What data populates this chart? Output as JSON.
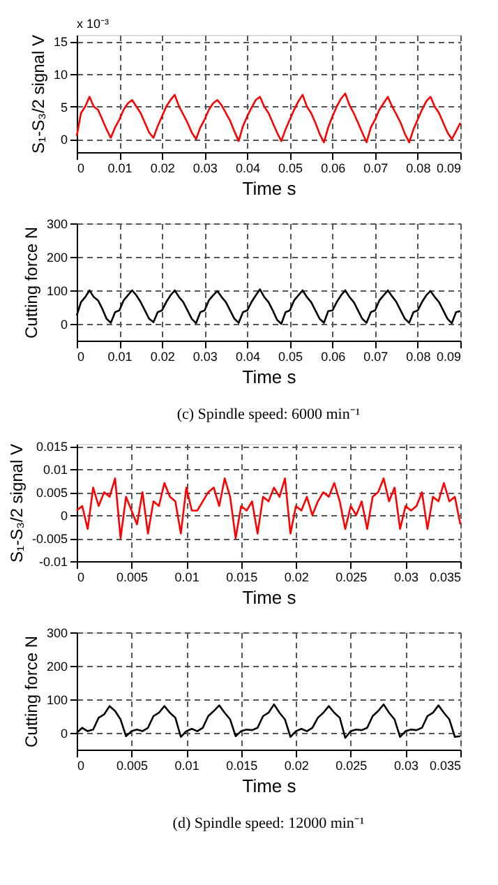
{
  "chart_data": [
    {
      "type": "line",
      "xlabel": "Time s",
      "ylabel": "S₁-S₃/2 signal V",
      "annotations": [
        "x 10⁻³"
      ],
      "xlim": [
        0,
        0.09
      ],
      "ylim": [
        -2,
        16
      ],
      "xticks": [
        0,
        0.01,
        0.02,
        0.03,
        0.04,
        0.05,
        0.06,
        0.07,
        0.08,
        0.09
      ],
      "yticks": [
        0,
        5,
        10,
        15
      ],
      "grid": true,
      "x": [
        0,
        0.001,
        0.002,
        0.003,
        0.004,
        0.005,
        0.006,
        0.007,
        0.008,
        0.009,
        0.01,
        0.011,
        0.012,
        0.013,
        0.014,
        0.015,
        0.016,
        0.017,
        0.018,
        0.019,
        0.02,
        0.021,
        0.022,
        0.023,
        0.024,
        0.025,
        0.026,
        0.027,
        0.028,
        0.029,
        0.03,
        0.031,
        0.032,
        0.033,
        0.034,
        0.035,
        0.036,
        0.037,
        0.038,
        0.039,
        0.04,
        0.041,
        0.042,
        0.043,
        0.044,
        0.045,
        0.046,
        0.047,
        0.048,
        0.049,
        0.05,
        0.051,
        0.052,
        0.053,
        0.054,
        0.055,
        0.056,
        0.057,
        0.058,
        0.059,
        0.06,
        0.061,
        0.062,
        0.063,
        0.064,
        0.065,
        0.066,
        0.067,
        0.068,
        0.069,
        0.07,
        0.071,
        0.072,
        0.073,
        0.074,
        0.075,
        0.076,
        0.077,
        0.078,
        0.079,
        0.08,
        0.081,
        0.082,
        0.083,
        0.084,
        0.085,
        0.086,
        0.087,
        0.088,
        0.089,
        0.09
      ],
      "series": [
        {
          "color": "#ff0000",
          "values": [
            0.5,
            4,
            5,
            6.5,
            5,
            4.5,
            3,
            1.5,
            0.2,
            1.8,
            3,
            4.5,
            5.5,
            6,
            5,
            4,
            2.5,
            1,
            0.2,
            2,
            3.5,
            5,
            6,
            6.8,
            5,
            3.8,
            2.5,
            1,
            0,
            1.8,
            3,
            4.5,
            5.5,
            6,
            5.2,
            4,
            2.8,
            1.2,
            -0.3,
            2,
            3.5,
            4.8,
            6,
            6.5,
            5,
            4,
            2.5,
            1,
            -0.3,
            1.5,
            3,
            4.5,
            5.8,
            6.8,
            5,
            4,
            2.5,
            0.8,
            -0.5,
            1.8,
            3.5,
            5,
            6.2,
            7,
            5.2,
            4,
            2.5,
            1,
            -0.5,
            1.8,
            3,
            4.5,
            5.5,
            6.5,
            5,
            3.8,
            2.5,
            0.8,
            -0.5,
            1.5,
            3,
            4.5,
            5.8,
            6.5,
            5,
            4,
            2.5,
            1,
            0,
            1.2,
            2.5
          ]
        }
      ]
    },
    {
      "type": "line",
      "title": "(c) Spindle speed: 6000 min⁻¹",
      "xlabel": "Time s",
      "ylabel": "Cutting force N",
      "xlim": [
        0,
        0.09
      ],
      "ylim": [
        -50,
        300
      ],
      "xticks": [
        0,
        0.01,
        0.02,
        0.03,
        0.04,
        0.05,
        0.06,
        0.07,
        0.08,
        0.09
      ],
      "yticks": [
        0,
        100,
        200,
        300
      ],
      "grid": true,
      "x": [
        0,
        0.001,
        0.002,
        0.003,
        0.004,
        0.005,
        0.006,
        0.007,
        0.008,
        0.009,
        0.01,
        0.011,
        0.012,
        0.013,
        0.014,
        0.015,
        0.016,
        0.017,
        0.018,
        0.019,
        0.02,
        0.021,
        0.022,
        0.023,
        0.024,
        0.025,
        0.026,
        0.027,
        0.028,
        0.029,
        0.03,
        0.031,
        0.032,
        0.033,
        0.034,
        0.035,
        0.036,
        0.037,
        0.038,
        0.039,
        0.04,
        0.041,
        0.042,
        0.043,
        0.044,
        0.045,
        0.046,
        0.047,
        0.048,
        0.049,
        0.05,
        0.051,
        0.052,
        0.053,
        0.054,
        0.055,
        0.056,
        0.057,
        0.058,
        0.059,
        0.06,
        0.061,
        0.062,
        0.063,
        0.064,
        0.065,
        0.066,
        0.067,
        0.068,
        0.069,
        0.07,
        0.071,
        0.072,
        0.073,
        0.074,
        0.075,
        0.076,
        0.077,
        0.078,
        0.079,
        0.08,
        0.081,
        0.082,
        0.083,
        0.084,
        0.085,
        0.086,
        0.087,
        0.088,
        0.089,
        0.09
      ],
      "series": [
        {
          "color": "#000000",
          "values": [
            25,
            65,
            80,
            100,
            80,
            70,
            45,
            15,
            3,
            35,
            40,
            70,
            85,
            100,
            85,
            65,
            40,
            15,
            5,
            35,
            40,
            65,
            85,
            100,
            80,
            65,
            40,
            15,
            2,
            35,
            40,
            70,
            85,
            98,
            80,
            65,
            40,
            15,
            3,
            35,
            40,
            65,
            85,
            103,
            80,
            65,
            40,
            12,
            0,
            35,
            40,
            70,
            85,
            100,
            80,
            65,
            40,
            15,
            3,
            38,
            40,
            65,
            85,
            100,
            80,
            65,
            40,
            15,
            3,
            35,
            40,
            70,
            85,
            100,
            82,
            65,
            40,
            15,
            3,
            35,
            40,
            65,
            85,
            98,
            80,
            65,
            40,
            15,
            2,
            35,
            38
          ]
        }
      ]
    },
    {
      "type": "line",
      "xlabel": "Time s",
      "ylabel": "S₁-S₃/2 signal V",
      "xlim": [
        0,
        0.035
      ],
      "ylim": [
        -0.01,
        0.0155
      ],
      "xticks": [
        0,
        0.005,
        0.01,
        0.015,
        0.02,
        0.025,
        0.03,
        0.035
      ],
      "yticks": [
        -0.01,
        -0.005,
        0,
        0.005,
        0.01,
        0.015
      ],
      "grid": true,
      "x": [
        0,
        0.0005,
        0.001,
        0.0015,
        0.002,
        0.0025,
        0.003,
        0.0035,
        0.004,
        0.0045,
        0.005,
        0.0055,
        0.006,
        0.0065,
        0.007,
        0.0075,
        0.008,
        0.0085,
        0.009,
        0.0095,
        0.01,
        0.0105,
        0.011,
        0.0115,
        0.012,
        0.0125,
        0.013,
        0.0135,
        0.014,
        0.0145,
        0.015,
        0.0155,
        0.016,
        0.0165,
        0.017,
        0.0175,
        0.018,
        0.0185,
        0.019,
        0.0195,
        0.02,
        0.0205,
        0.021,
        0.0215,
        0.022,
        0.0225,
        0.023,
        0.0235,
        0.024,
        0.0245,
        0.025,
        0.0255,
        0.026,
        0.0265,
        0.027,
        0.0275,
        0.028,
        0.0285,
        0.029,
        0.0295,
        0.03,
        0.0305,
        0.031,
        0.0315,
        0.032,
        0.0325,
        0.033,
        0.0335,
        0.034,
        0.0345,
        0.035
      ],
      "series": [
        {
          "color": "#ff0000",
          "values": [
            0.001,
            0.002,
            -0.003,
            0.006,
            0.002,
            0.005,
            0.004,
            0.008,
            -0.005,
            0.004,
            0.001,
            -0.002,
            0.005,
            -0.004,
            0.003,
            0.002,
            0.007,
            0.004,
            0.003,
            -0.004,
            0.006,
            0.001,
            0.001,
            0.003,
            0.005,
            0.006,
            0.002,
            0.008,
            0.004,
            -0.005,
            0.002,
            0.001,
            0.003,
            -0.004,
            0.004,
            0.003,
            0.006,
            0.004,
            0.008,
            -0.004,
            0.002,
            0.001,
            0.004,
            0,
            0.003,
            0.005,
            0.004,
            0.007,
            0.003,
            -0.003,
            0.002,
            0,
            0.003,
            -0.003,
            0.004,
            0.005,
            0.008,
            0.003,
            0.006,
            -0.003,
            0.002,
            0.001,
            0.002,
            0.005,
            -0.003,
            0.004,
            0.003,
            0.007,
            0.003,
            0.004,
            -0.002
          ]
        }
      ]
    },
    {
      "type": "line",
      "title": "(d) Spindle speed: 12000 min⁻¹",
      "xlabel": "Time s",
      "ylabel": "Cutting force N",
      "xlim": [
        0,
        0.035
      ],
      "ylim": [
        -50,
        300
      ],
      "xticks": [
        0,
        0.005,
        0.01,
        0.015,
        0.02,
        0.025,
        0.03,
        0.035
      ],
      "yticks": [
        0,
        100,
        200,
        300
      ],
      "grid": true,
      "x": [
        0,
        0.0005,
        0.001,
        0.0015,
        0.002,
        0.0025,
        0.003,
        0.0035,
        0.004,
        0.0045,
        0.005,
        0.0055,
        0.006,
        0.0065,
        0.007,
        0.0075,
        0.008,
        0.0085,
        0.009,
        0.0095,
        0.01,
        0.0105,
        0.011,
        0.0115,
        0.012,
        0.0125,
        0.013,
        0.0135,
        0.014,
        0.0145,
        0.015,
        0.0155,
        0.016,
        0.0165,
        0.017,
        0.0175,
        0.018,
        0.0185,
        0.019,
        0.0195,
        0.02,
        0.0205,
        0.021,
        0.0215,
        0.022,
        0.0225,
        0.023,
        0.0235,
        0.024,
        0.0245,
        0.025,
        0.0255,
        0.026,
        0.0265,
        0.027,
        0.0275,
        0.028,
        0.0285,
        0.029,
        0.0295,
        0.03,
        0.0305,
        0.031,
        0.0315,
        0.032,
        0.0325,
        0.033,
        0.0335,
        0.034,
        0.0345,
        0.035
      ],
      "series": [
        {
          "color": "#000000",
          "values": [
            0,
            15,
            5,
            10,
            45,
            55,
            80,
            65,
            40,
            -10,
            5,
            10,
            5,
            15,
            50,
            60,
            80,
            60,
            45,
            -12,
            5,
            12,
            5,
            15,
            50,
            65,
            82,
            60,
            40,
            -10,
            5,
            10,
            8,
            15,
            50,
            60,
            85,
            60,
            40,
            -12,
            5,
            12,
            5,
            15,
            45,
            60,
            80,
            60,
            45,
            -15,
            5,
            10,
            8,
            15,
            50,
            65,
            85,
            60,
            40,
            -12,
            5,
            10,
            8,
            15,
            50,
            60,
            82,
            60,
            40,
            -12,
            -10
          ]
        }
      ]
    }
  ]
}
